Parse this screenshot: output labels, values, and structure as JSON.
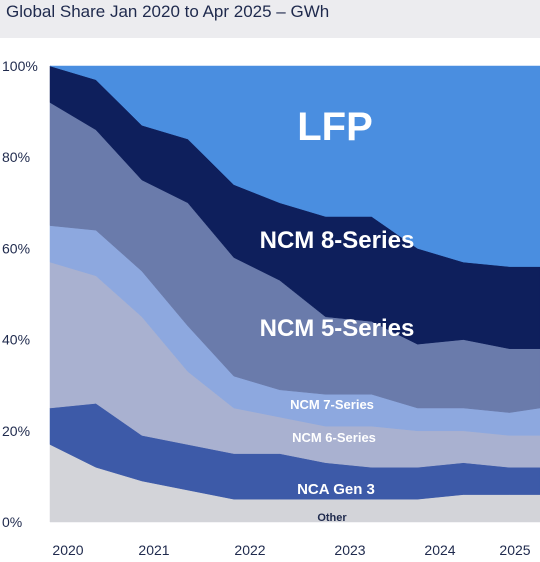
{
  "title": "Global Share Jan 2020 to Apr 2025 – GWh",
  "chart_data": {
    "type": "area",
    "stacked": true,
    "title": "Global Share Jan 2020 to Apr 2025 – GWh",
    "xlabel": "",
    "ylabel": "",
    "ylim": [
      0,
      100
    ],
    "y_ticks": [
      "0%",
      "20%",
      "40%",
      "60%",
      "80%",
      "100%"
    ],
    "x_ticks": [
      "2020",
      "2021",
      "2022",
      "2023",
      "2024",
      "2025"
    ],
    "x": [
      "2020-01",
      "2020-07",
      "2021-01",
      "2021-07",
      "2022-01",
      "2022-07",
      "2023-01",
      "2023-07",
      "2024-01",
      "2024-07",
      "2025-01",
      "2025-04"
    ],
    "series": [
      {
        "name": "Other",
        "color": "#d3d4d9",
        "values": [
          17,
          12,
          9,
          7,
          5,
          5,
          5,
          5,
          5,
          6,
          6,
          6
        ]
      },
      {
        "name": "NCA Gen 3",
        "color": "#3d5aa8",
        "values": [
          8,
          14,
          10,
          10,
          10,
          10,
          8,
          7,
          7,
          7,
          6,
          6
        ]
      },
      {
        "name": "NCM 6-Series",
        "color": "#a9b1d0",
        "values": [
          32,
          28,
          26,
          16,
          10,
          8,
          8,
          9,
          8,
          7,
          7,
          7
        ]
      },
      {
        "name": "NCM 7-Series",
        "color": "#8da8df",
        "values": [
          8,
          10,
          10,
          10,
          7,
          6,
          7,
          7,
          5,
          5,
          5,
          6
        ]
      },
      {
        "name": "NCM 5-Series",
        "color": "#6a7bab",
        "values": [
          27,
          22,
          20,
          27,
          26,
          24,
          17,
          16,
          14,
          15,
          14,
          13
        ]
      },
      {
        "name": "NCM 8-Series",
        "color": "#0e1f5c",
        "values": [
          8,
          11,
          12,
          14,
          16,
          17,
          22,
          23,
          21,
          17,
          18,
          18
        ]
      },
      {
        "name": "LFP",
        "color": "#4a8ee0",
        "values": [
          0,
          3,
          13,
          16,
          26,
          30,
          33,
          33,
          40,
          43,
          44,
          44
        ]
      }
    ]
  }
}
